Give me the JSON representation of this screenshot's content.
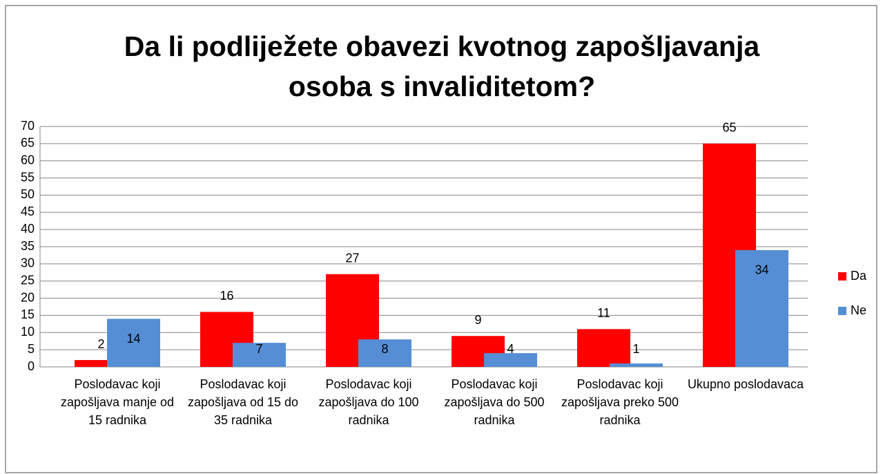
{
  "chart_data": {
    "type": "bar",
    "title": "Da li podliježete obavezi kvotnog zapošljavanja osoba s invaliditetom?",
    "categories": [
      "Poslodavac koji zapošljava manje od 15 radnika",
      "Poslodavac koji zapošljava od 15 do 35 radnika",
      "Poslodavac koji zapošljava do 100 radnika",
      "Poslodavac koji zapošljava do 500 radnika",
      "Poslodavac koji zapošljava preko 500 radnika",
      "Ukupno poslodavaca"
    ],
    "series": [
      {
        "name": "Da",
        "color": "#ff0000",
        "values": [
          2,
          16,
          27,
          9,
          11,
          65
        ]
      },
      {
        "name": "Ne",
        "color": "#558ed5",
        "values": [
          14,
          7,
          8,
          4,
          1,
          34
        ]
      }
    ],
    "ylim": [
      0,
      70
    ],
    "yticks": [
      0,
      5,
      10,
      15,
      20,
      25,
      30,
      35,
      40,
      45,
      50,
      55,
      60,
      65,
      70
    ],
    "grid": true,
    "legend": "right"
  }
}
